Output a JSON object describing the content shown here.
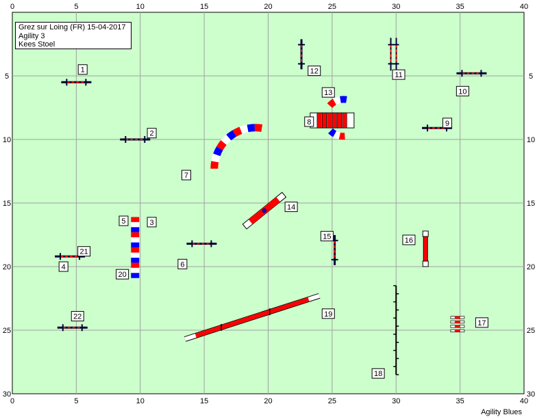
{
  "header": {
    "location": "Grez sur Loing (FR) 15-04-2017",
    "class": "Agility 3",
    "judge": "Kees Stoel"
  },
  "footer": {
    "brand": "Agility Blues"
  },
  "course": {
    "field_color": "#ccffcc",
    "x_axis": {
      "min": 0,
      "max": 40,
      "ticks": [
        0,
        5,
        10,
        15,
        20,
        25,
        30,
        35,
        40
      ]
    },
    "y_axis": {
      "min": 0,
      "max": 30,
      "ticks": [
        5,
        10,
        15,
        20,
        25,
        30
      ]
    },
    "colors": {
      "red": "#ff0000",
      "blue": "#0000ff",
      "white": "#ffffff",
      "dark": "#000033"
    },
    "obstacles": [
      {
        "n": "1",
        "type": "jump",
        "x": 5.0,
        "y": 5.5,
        "angle": 0
      },
      {
        "n": "2",
        "type": "jump",
        "x": 9.6,
        "y": 10.0,
        "angle": 0
      },
      {
        "n": "3",
        "type": "tunnel_straight",
        "x": 9.6,
        "y": 18.5,
        "length": 4.8,
        "angle": 90
      },
      {
        "n": "5",
        "type": "tunnel_entry_ref",
        "x": 9.6,
        "y": 16.2
      },
      {
        "n": "20",
        "type": "tunnel_entry_ref",
        "x": 9.6,
        "y": 20.8
      },
      {
        "n": "4",
        "type": "jump",
        "x": 4.5,
        "y": 19.2,
        "angle": 0
      },
      {
        "n": "21",
        "type": "jump_ref",
        "x": 4.5,
        "y": 19.2
      },
      {
        "n": "6",
        "type": "jump",
        "x": 14.8,
        "y": 18.2,
        "angle": 0
      },
      {
        "n": "7",
        "type": "tunnel_curved",
        "x": 15.5,
        "y": 10.5
      },
      {
        "n": "8",
        "type": "tire_table",
        "x": 25.0,
        "y": 8.5
      },
      {
        "n": "13",
        "type": "tunnel_curved_small",
        "x": 25.0,
        "y": 8.5
      },
      {
        "n": "9",
        "type": "jump",
        "x": 33.2,
        "y": 9.1,
        "angle": 0
      },
      {
        "n": "10",
        "type": "jump",
        "x": 35.9,
        "y": 4.8,
        "angle": 0
      },
      {
        "n": "11",
        "type": "double_jump",
        "x": 29.8,
        "y": 3.3,
        "angle": 90
      },
      {
        "n": "12",
        "type": "jump",
        "x": 22.6,
        "y": 3.3,
        "angle": 90
      },
      {
        "n": "14",
        "type": "dogwalk_short",
        "x": 19.7,
        "y": 15.6
      },
      {
        "n": "15",
        "type": "jump",
        "x": 25.2,
        "y": 18.7,
        "angle": 90
      },
      {
        "n": "16",
        "type": "wall",
        "x": 32.3,
        "y": 18.6,
        "angle": 90
      },
      {
        "n": "17",
        "type": "long_jump",
        "x": 34.8,
        "y": 24.5
      },
      {
        "n": "18",
        "type": "weave",
        "x": 30.0,
        "y": 25.0
      },
      {
        "n": "19",
        "type": "dogwalk",
        "x": 18.8,
        "y": 24.2
      },
      {
        "n": "22",
        "type": "jump",
        "x": 4.7,
        "y": 24.8,
        "angle": 0
      }
    ],
    "labels": [
      {
        "n": "1",
        "x": 5.5,
        "y": 4.5
      },
      {
        "n": "2",
        "x": 10.9,
        "y": 9.5
      },
      {
        "n": "3",
        "x": 10.9,
        "y": 16.5
      },
      {
        "n": "4",
        "x": 4.0,
        "y": 20.0
      },
      {
        "n": "5",
        "x": 8.7,
        "y": 16.4
      },
      {
        "n": "6",
        "x": 13.3,
        "y": 19.8
      },
      {
        "n": "7",
        "x": 13.6,
        "y": 12.8
      },
      {
        "n": "8",
        "x": 23.2,
        "y": 8.6
      },
      {
        "n": "9",
        "x": 34.0,
        "y": 8.7
      },
      {
        "n": "10",
        "x": 35.2,
        "y": 6.2
      },
      {
        "n": "11",
        "x": 30.2,
        "y": 4.9
      },
      {
        "n": "12",
        "x": 23.6,
        "y": 4.6
      },
      {
        "n": "13",
        "x": 24.7,
        "y": 6.3
      },
      {
        "n": "14",
        "x": 21.8,
        "y": 15.3
      },
      {
        "n": "15",
        "x": 24.6,
        "y": 17.6
      },
      {
        "n": "16",
        "x": 31.0,
        "y": 17.9
      },
      {
        "n": "17",
        "x": 36.7,
        "y": 24.4
      },
      {
        "n": "18",
        "x": 28.6,
        "y": 28.4
      },
      {
        "n": "19",
        "x": 24.7,
        "y": 23.7
      },
      {
        "n": "20",
        "x": 8.6,
        "y": 20.6
      },
      {
        "n": "21",
        "x": 5.6,
        "y": 18.8
      },
      {
        "n": "22",
        "x": 5.1,
        "y": 23.9
      }
    ]
  }
}
